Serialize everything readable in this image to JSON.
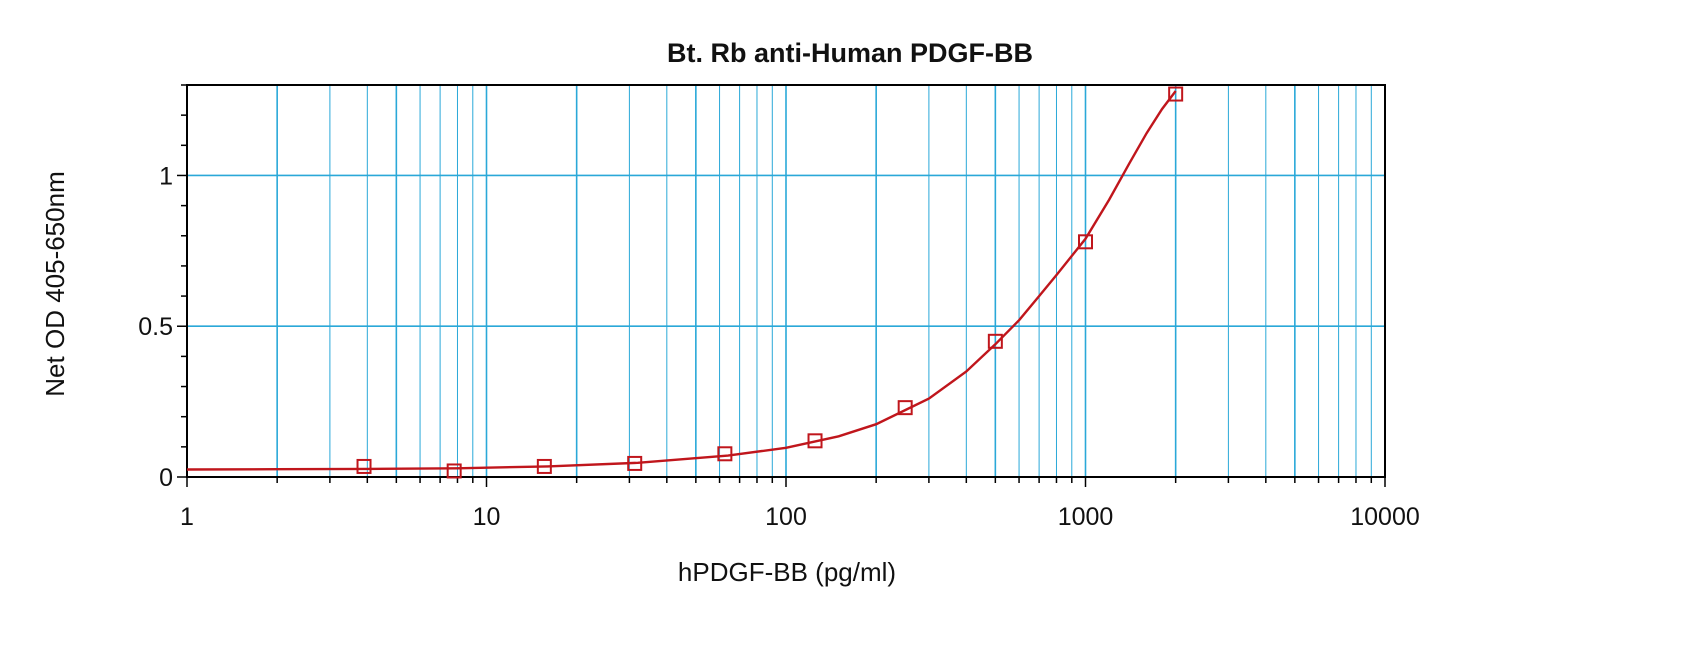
{
  "chart_data": {
    "type": "scatter",
    "title": "Bt. Rb anti-Human PDGF-BB",
    "xlabel": "hPDGF-BB (pg/ml)",
    "ylabel": "Net OD 405-650nm",
    "x_scale": "log",
    "xlim": [
      1,
      10000
    ],
    "ylim": [
      0,
      1.3
    ],
    "x_ticks": [
      1,
      10,
      100,
      1000,
      10000
    ],
    "x_tick_labels": [
      "1",
      "10",
      "100",
      "1000",
      "10000"
    ],
    "y_ticks": [
      0,
      0.5,
      1
    ],
    "y_tick_labels": [
      "0",
      "0.5",
      "1"
    ],
    "grid": true,
    "series": [
      {
        "marker": "square",
        "color": "#c0161c",
        "points": [
          {
            "x": 3.9,
            "y": 0.035
          },
          {
            "x": 7.8,
            "y": 0.02
          },
          {
            "x": 15.6,
            "y": 0.035
          },
          {
            "x": 31.25,
            "y": 0.045
          },
          {
            "x": 62.5,
            "y": 0.077
          },
          {
            "x": 125,
            "y": 0.12
          },
          {
            "x": 250,
            "y": 0.23
          },
          {
            "x": 500,
            "y": 0.45
          },
          {
            "x": 1000,
            "y": 0.78
          },
          {
            "x": 2000,
            "y": 1.27
          }
        ]
      }
    ],
    "fit_curve": {
      "color": "#c0161c",
      "x": [
        1,
        2,
        4,
        8,
        16,
        32,
        64,
        100,
        150,
        200,
        300,
        400,
        500,
        600,
        700,
        800,
        1000,
        1200,
        1400,
        1600,
        1800,
        2000
      ],
      "y": [
        0.025,
        0.026,
        0.027,
        0.029,
        0.035,
        0.047,
        0.071,
        0.097,
        0.135,
        0.175,
        0.26,
        0.35,
        0.44,
        0.52,
        0.6,
        0.67,
        0.79,
        0.92,
        1.04,
        1.14,
        1.22,
        1.28
      ]
    },
    "colors": {
      "grid": "#2aa8d8",
      "axis": "#000000",
      "series": "#c0161c"
    }
  }
}
